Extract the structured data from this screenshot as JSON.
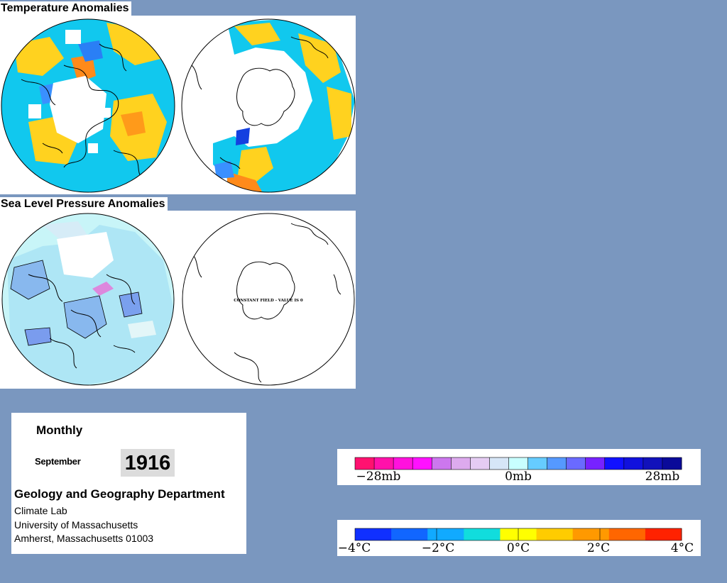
{
  "temperature": {
    "title": "Temperature Anomalies"
  },
  "pressure": {
    "title": "Sea Level Pressure Anomalies",
    "constant_field_note": "CONSTANT FIELD - VALUE IS 0"
  },
  "info": {
    "mode": "Monthly",
    "month": "September",
    "year": "1916",
    "department": "Geology and Geography Department",
    "lab": "Climate Lab",
    "university": "University of Massachusetts",
    "address": "Amherst, Massachusetts 01003"
  },
  "pressure_scale": {
    "labels": [
      "−28mb",
      "0mb",
      "28mb"
    ],
    "colors": [
      "#ff1170",
      "#ff11aa",
      "#ff11dd",
      "#ff11ff",
      "#cc77ee",
      "#ddaaee",
      "#e5ccf3",
      "#d6e6f7",
      "#c8ffff",
      "#66ccff",
      "#5599ff",
      "#6a6aff",
      "#7722ff",
      "#1111ff",
      "#1111dd",
      "#1111bb",
      "#0a0a99"
    ]
  },
  "temp_scale": {
    "labels": [
      "−4°C",
      "−2°C",
      "0°C",
      "2°C",
      "4°C"
    ],
    "colors": [
      "#1030ff",
      "#1166ff",
      "#11aaff",
      "#11dddd",
      "#ffff00",
      "#ffcc00",
      "#ff9900",
      "#ff6600",
      "#ff2200"
    ]
  },
  "colors": {
    "page_background": "#7a97bf",
    "anomaly_neutral_blue": "#11c8ee",
    "anomaly_warm": "#ffd21f",
    "no_data": "#ffffff"
  }
}
